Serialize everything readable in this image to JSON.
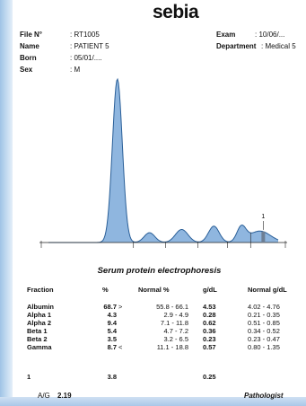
{
  "brand": "sebia",
  "header": {
    "file_label": "File N°",
    "file_value": ": RT1005",
    "name_label": "Name",
    "name_value": ": PATIENT 5",
    "born_label": "Born",
    "born_value": ": 05/01/....",
    "sex_label": "Sex",
    "sex_value": ": M",
    "exam_label": "Exam",
    "exam_value": ": 10/06/...",
    "department_label": "Department",
    "department_value": ": Medical 5"
  },
  "chart_data": {
    "type": "line",
    "title": "Serum protein electrophoresis",
    "annotation_label": "1",
    "peaks": [
      {
        "position": 0.3,
        "height": 1.0
      },
      {
        "position": 0.44,
        "height": 0.06
      },
      {
        "position": 0.58,
        "height": 0.08
      },
      {
        "position": 0.72,
        "height": 0.1
      },
      {
        "position": 0.84,
        "height": 0.09
      },
      {
        "position": 0.92,
        "height": 0.07
      }
    ]
  },
  "table": {
    "headers": {
      "fraction": "Fraction",
      "pct": "%",
      "normal_pct": "Normal  %",
      "gdl": "g/dL",
      "normal_gdl": "Normal g/dL"
    },
    "rows": [
      {
        "fraction": "Albumin",
        "pct": "68.7",
        "flag": ">",
        "normal_pct": "55.8 - 66.1",
        "gdl": "4.53",
        "normal_gdl": "4.02 -  4.76"
      },
      {
        "fraction": "Alpha 1",
        "pct": "4.3",
        "flag": "",
        "normal_pct": "2.9 -   4.9",
        "gdl": "0.28",
        "normal_gdl": "0.21 -  0.35"
      },
      {
        "fraction": "Alpha 2",
        "pct": "9.4",
        "flag": "",
        "normal_pct": "7.1 - 11.8",
        "gdl": "0.62",
        "normal_gdl": "0.51 -  0.85"
      },
      {
        "fraction": "Beta 1",
        "pct": "5.4",
        "flag": "",
        "normal_pct": "4.7 -   7.2",
        "gdl": "0.36",
        "normal_gdl": "0.34 -  0.52"
      },
      {
        "fraction": "Beta 2",
        "pct": "3.5",
        "flag": "",
        "normal_pct": "3.2 -   6.5",
        "gdl": "0.23",
        "normal_gdl": "0.23 -  0.47"
      },
      {
        "fraction": "Gamma",
        "pct": "8.7",
        "flag": "<",
        "normal_pct": "11.1 - 18.8",
        "gdl": "0.57",
        "normal_gdl": "0.80 -  1.35"
      }
    ],
    "extra_row": {
      "fraction": "1",
      "pct": "3.8",
      "gdl": "0.25"
    }
  },
  "footer": {
    "ag_label": "A/G",
    "ag_value": "2.19",
    "pathologist": "Pathologist"
  },
  "colors": {
    "peak_fill": "#8fb6df",
    "peak_stroke": "#2a5f98",
    "strip": "#a9c7e8"
  }
}
